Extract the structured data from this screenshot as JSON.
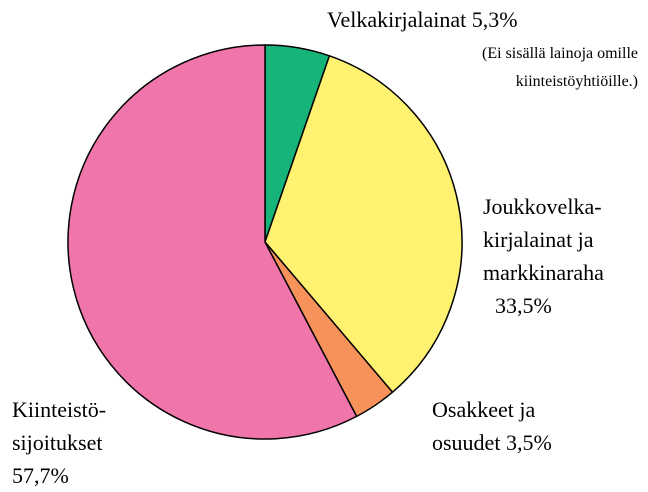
{
  "chart_data": {
    "type": "pie",
    "categories": [
      "Velkakirjalainat",
      "Joukkovelka-\nkirjalainat ja\nmarkkinaraha",
      "Osakkeet ja\nosuudet",
      "Kiinteistö-\nsijoitukset"
    ],
    "values": [
      5.3,
      33.5,
      3.5,
      57.7
    ],
    "value_labels": [
      "5,3%",
      "33,5%",
      "3,5%",
      "57,7%"
    ],
    "colors": [
      "#17b47a",
      "#fff270",
      "#f7935a",
      "#f075ab"
    ],
    "annotations": [
      "(Ei sisällä lainoja omille\nkiinteistöyhtiöille.)"
    ]
  }
}
